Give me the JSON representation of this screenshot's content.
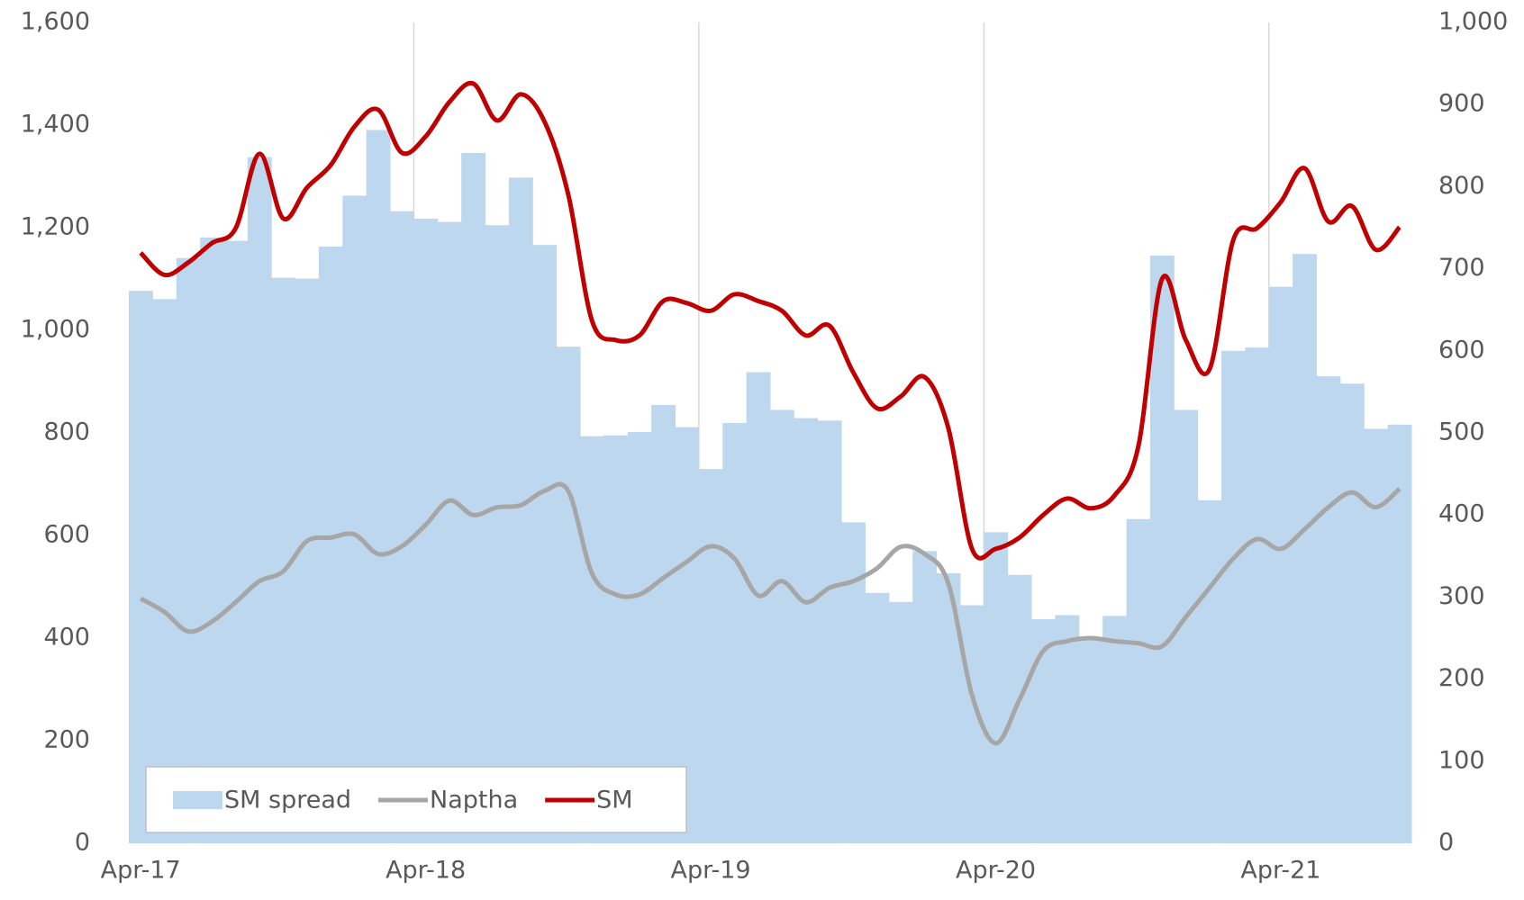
{
  "chart_data": {
    "type": "combo",
    "categories": [
      "Apr-17",
      null,
      null,
      null,
      null,
      null,
      null,
      null,
      null,
      null,
      null,
      null,
      "Apr-18",
      null,
      null,
      null,
      null,
      null,
      null,
      null,
      null,
      null,
      null,
      null,
      "Apr-19",
      null,
      null,
      null,
      null,
      null,
      null,
      null,
      null,
      null,
      null,
      null,
      "Apr-20",
      null,
      null,
      null,
      null,
      null,
      null,
      null,
      null,
      null,
      null,
      null,
      "Apr-21",
      null,
      null,
      null,
      null,
      null
    ],
    "series": [
      {
        "name": "SM spread",
        "type": "bar",
        "axis": "y2",
        "color": "#bdd7ee",
        "values": [
          673,
          663,
          713,
          738,
          734,
          836,
          689,
          688,
          727,
          789,
          869,
          770,
          761,
          757,
          841,
          753,
          811,
          729,
          605,
          496,
          497,
          501,
          534,
          507,
          456,
          512,
          574,
          528,
          518,
          515,
          391,
          305,
          294,
          356,
          329,
          290,
          379,
          327,
          273,
          278,
          250,
          277,
          395,
          716,
          528,
          418,
          600,
          604,
          678,
          718,
          569,
          560,
          505,
          510
        ]
      },
      {
        "name": "Naptha",
        "type": "line",
        "color": "#a6a6a6",
        "values": [
          477,
          451,
          413,
          432,
          470,
          511,
          530,
          589,
          596,
          602,
          564,
          579,
          621,
          668,
          640,
          655,
          659,
          687,
          687,
          526,
          485,
          485,
          517,
          549,
          579,
          555,
          483,
          511,
          470,
          498,
          511,
          536,
          578,
          564,
          507,
          289,
          195,
          280,
          375,
          394,
          400,
          394,
          390,
          384,
          441,
          498,
          555,
          593,
          574,
          612,
          655,
          684,
          655,
          691
        ]
      },
      {
        "name": "SM",
        "type": "line",
        "color": "#c00000",
        "values": [
          1151,
          1108,
          1132,
          1170,
          1199,
          1344,
          1218,
          1278,
          1322,
          1397,
          1430,
          1346,
          1378,
          1445,
          1481,
          1409,
          1460,
          1407,
          1265,
          1019,
          981,
          990,
          1057,
          1053,
          1038,
          1070,
          1057,
          1038,
          990,
          1009,
          918,
          848,
          871,
          909,
          810,
          574,
          574,
          596,
          640,
          672,
          653,
          678,
          773,
          1100,
          981,
          924,
          1176,
          1199,
          1250,
          1316,
          1212,
          1242,
          1157,
          1201
        ]
      }
    ],
    "ylim": [
      0,
      1600
    ],
    "yticks": [
      0,
      200,
      400,
      600,
      800,
      {
        "value": 1000,
        "label": "1,000"
      },
      {
        "value": 1200,
        "label": "1,200"
      },
      {
        "value": 1400,
        "label": "1,400"
      },
      {
        "value": 1600,
        "label": "1,600"
      }
    ],
    "y2lim": [
      0,
      1000
    ],
    "y2ticks": [
      0,
      100,
      200,
      300,
      400,
      500,
      600,
      700,
      800,
      900,
      {
        "value": 1000,
        "label": "1,000"
      }
    ],
    "grid": "x",
    "legend": "lower left"
  }
}
